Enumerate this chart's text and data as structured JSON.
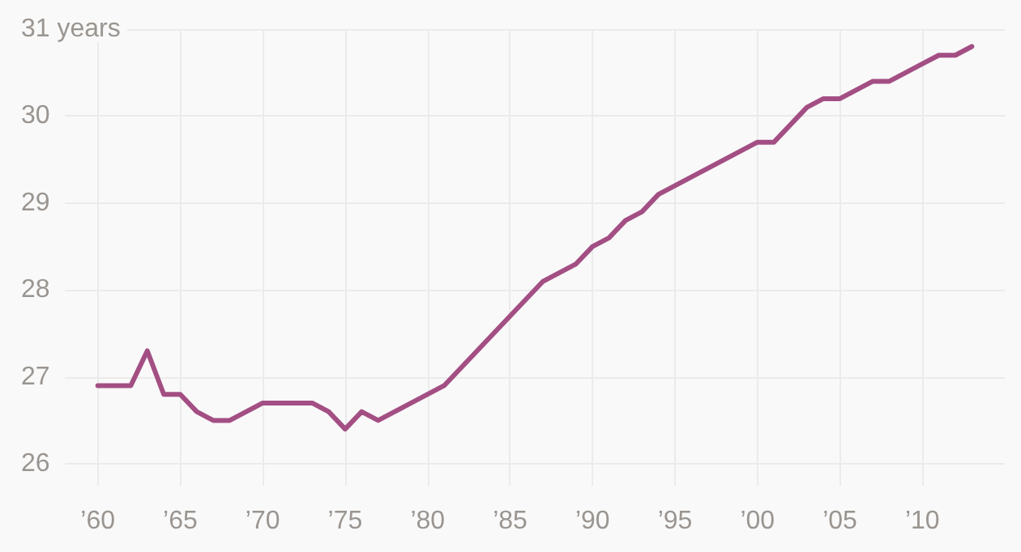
{
  "chart_data": {
    "type": "line",
    "x": [
      1960,
      1961,
      1962,
      1963,
      1964,
      1965,
      1966,
      1967,
      1968,
      1969,
      1970,
      1971,
      1972,
      1973,
      1974,
      1975,
      1976,
      1977,
      1978,
      1979,
      1980,
      1981,
      1982,
      1983,
      1984,
      1985,
      1986,
      1987,
      1988,
      1989,
      1990,
      1991,
      1992,
      1993,
      1994,
      1995,
      1996,
      1997,
      1998,
      1999,
      2000,
      2001,
      2002,
      2003,
      2004,
      2005,
      2006,
      2007,
      2008,
      2009,
      2010,
      2011,
      2012,
      2013
    ],
    "series": [
      {
        "color": "#a34f84",
        "values": [
          26.9,
          26.9,
          26.9,
          27.3,
          26.8,
          26.8,
          26.6,
          26.5,
          26.5,
          26.6,
          26.7,
          26.7,
          26.7,
          26.7,
          26.6,
          26.4,
          26.6,
          26.5,
          26.6,
          26.7,
          26.8,
          26.9,
          27.1,
          27.3,
          27.5,
          27.7,
          27.9,
          28.1,
          28.2,
          28.3,
          28.5,
          28.6,
          28.8,
          28.9,
          29.1,
          29.2,
          29.3,
          29.4,
          29.5,
          29.6,
          29.7,
          29.7,
          29.9,
          30.1,
          30.2,
          30.2,
          30.3,
          30.4,
          30.4,
          30.5,
          30.6,
          30.7,
          30.7,
          30.8
        ]
      }
    ],
    "xlim": [
      1958,
      2015
    ],
    "xticks": [
      {
        "value": 1960,
        "label": "’60"
      },
      {
        "value": 1965,
        "label": "’65"
      },
      {
        "value": 1970,
        "label": "’70"
      },
      {
        "value": 1975,
        "label": "’75"
      },
      {
        "value": 1980,
        "label": "’80"
      },
      {
        "value": 1985,
        "label": "’85"
      },
      {
        "value": 1990,
        "label": "’90"
      },
      {
        "value": 1995,
        "label": "’95"
      },
      {
        "value": 2000,
        "label": "’00"
      },
      {
        "value": 2005,
        "label": "’05"
      },
      {
        "value": 2010,
        "label": "’10"
      }
    ],
    "ylim": [
      25.75,
      31
    ],
    "yticks": [
      26,
      27,
      28,
      29,
      30,
      {
        "value": 31,
        "label": "31 years"
      }
    ],
    "grid": true,
    "marker": "none",
    "line_style": "solid"
  }
}
